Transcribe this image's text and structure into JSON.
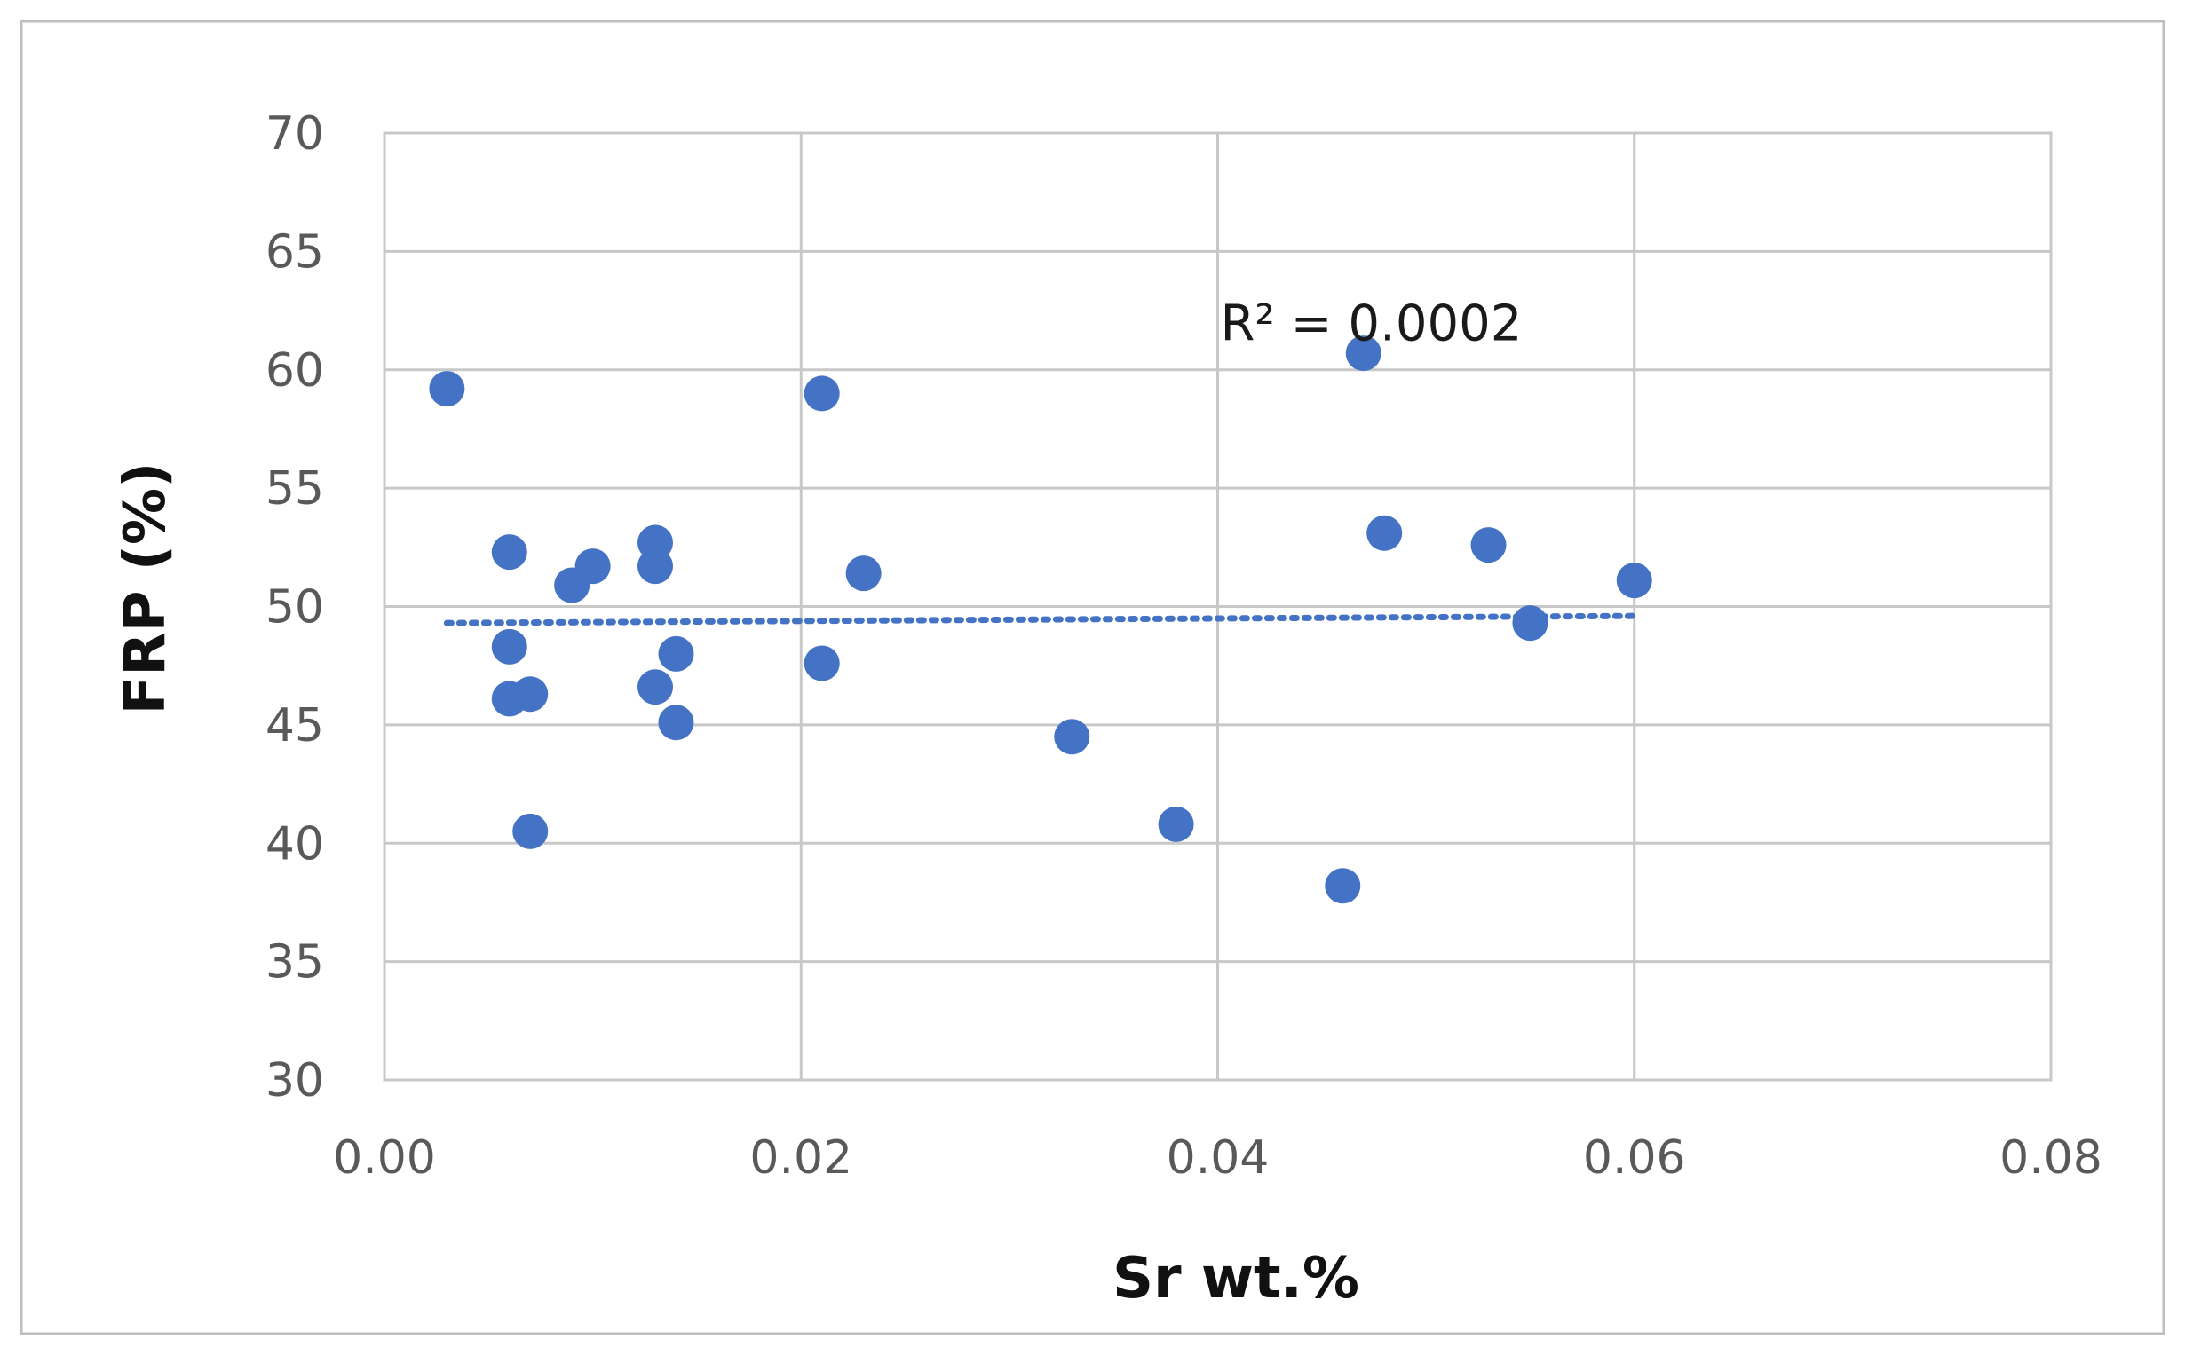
{
  "chart_data": {
    "type": "scatter",
    "title": "",
    "xlabel": "Sr wt.%",
    "ylabel": "FRP (%)",
    "xlim": [
      0,
      0.08
    ],
    "ylim": [
      30,
      70
    ],
    "x_ticks": [
      0,
      0.02,
      0.04,
      0.06,
      0.08
    ],
    "x_tick_labels": [
      "0.00",
      "0.02",
      "0.04",
      "0.06",
      "0.08"
    ],
    "y_ticks": [
      30,
      35,
      40,
      45,
      50,
      55,
      60,
      65,
      70
    ],
    "y_tick_labels": [
      "30",
      "35",
      "40",
      "45",
      "50",
      "55",
      "60",
      "65",
      "70"
    ],
    "grid": true,
    "legend": "none",
    "marker_color": "#4472C4",
    "trendline": {
      "type": "linear",
      "style": "dotted",
      "color": "#4472C4",
      "x": [
        0.003,
        0.06
      ],
      "y": [
        49.3,
        49.6
      ]
    },
    "annotation": {
      "text": "R² = 0.0002",
      "x": 0.04,
      "y": 62
    },
    "series": [
      {
        "points": [
          {
            "x": 0.003,
            "y": 59.2
          },
          {
            "x": 0.006,
            "y": 52.3
          },
          {
            "x": 0.006,
            "y": 48.3
          },
          {
            "x": 0.006,
            "y": 46.1
          },
          {
            "x": 0.007,
            "y": 46.3
          },
          {
            "x": 0.007,
            "y": 40.5
          },
          {
            "x": 0.009,
            "y": 50.9
          },
          {
            "x": 0.01,
            "y": 51.7
          },
          {
            "x": 0.013,
            "y": 52.7
          },
          {
            "x": 0.013,
            "y": 51.7
          },
          {
            "x": 0.013,
            "y": 46.6
          },
          {
            "x": 0.014,
            "y": 48.0
          },
          {
            "x": 0.014,
            "y": 45.1
          },
          {
            "x": 0.021,
            "y": 59.0
          },
          {
            "x": 0.021,
            "y": 47.6
          },
          {
            "x": 0.023,
            "y": 51.4
          },
          {
            "x": 0.033,
            "y": 44.5
          },
          {
            "x": 0.038,
            "y": 40.8
          },
          {
            "x": 0.046,
            "y": 38.2
          },
          {
            "x": 0.047,
            "y": 60.7
          },
          {
            "x": 0.048,
            "y": 53.1
          },
          {
            "x": 0.053,
            "y": 52.6
          },
          {
            "x": 0.055,
            "y": 49.3
          },
          {
            "x": 0.06,
            "y": 51.1
          }
        ]
      }
    ]
  }
}
